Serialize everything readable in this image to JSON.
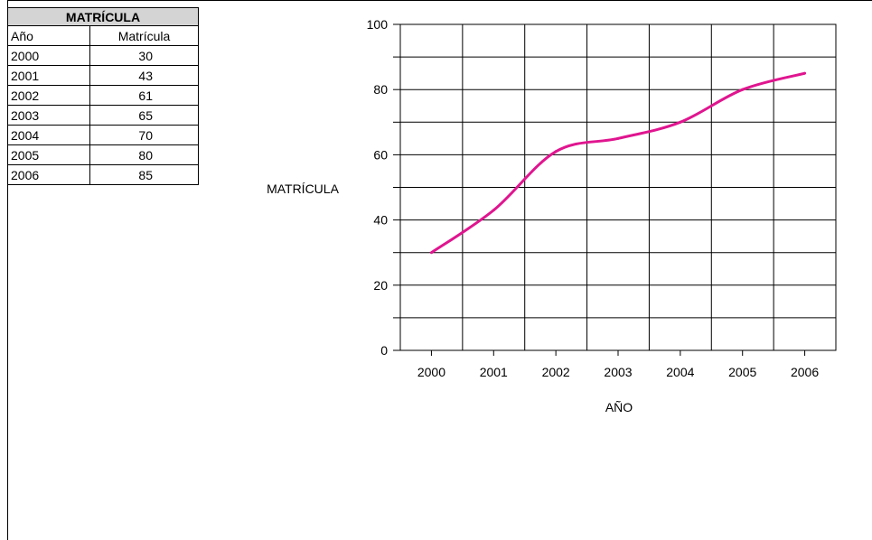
{
  "table": {
    "title": "MATRÍCULA",
    "headers": [
      "Año",
      "Matrícula"
    ],
    "rows": [
      {
        "year": "2000",
        "value": "30"
      },
      {
        "year": "2001",
        "value": "43"
      },
      {
        "year": "2002",
        "value": "61"
      },
      {
        "year": "2003",
        "value": "65"
      },
      {
        "year": "2004",
        "value": "70"
      },
      {
        "year": "2005",
        "value": "80"
      },
      {
        "year": "2006",
        "value": "85"
      }
    ]
  },
  "chart_data": {
    "type": "line",
    "categories": [
      "2000",
      "2001",
      "2002",
      "2003",
      "2004",
      "2005",
      "2006"
    ],
    "series": [
      {
        "values": [
          30,
          43,
          61,
          65,
          70,
          80,
          85
        ],
        "color": "#e0158f"
      }
    ],
    "xlabel": "AÑO",
    "ylabel": "MATRÍCULA",
    "ylim": [
      0,
      100
    ],
    "yticks": [
      0,
      20,
      40,
      60,
      80,
      100
    ],
    "grid": true,
    "smooth": true
  }
}
